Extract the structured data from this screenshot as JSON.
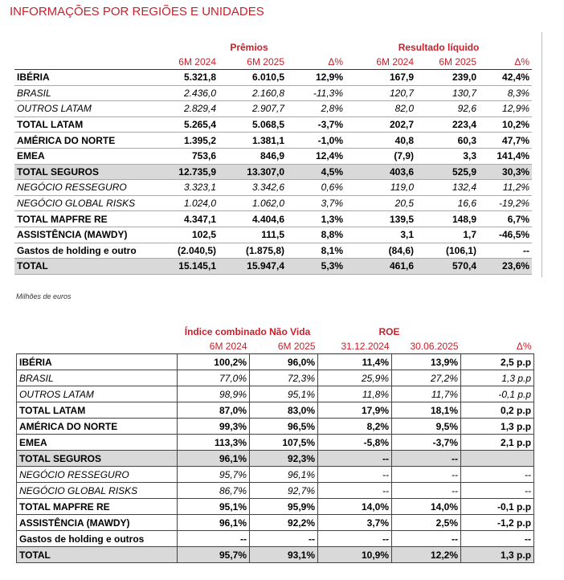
{
  "header": {
    "title": "INFORMAÇÕES POR REGIÕES E UNIDADES"
  },
  "table1": {
    "groups": [
      "Prêmios",
      "Resultado líquido"
    ],
    "columns": [
      "6M 2024",
      "6M 2025",
      "Δ%",
      "6M 2024",
      "6M 2025",
      "Δ%"
    ],
    "rows": [
      {
        "label": "IBÉRIA",
        "style": "bold",
        "cells": [
          "5.321,8",
          "6.010,5",
          "12,9%",
          "167,9",
          "239,0",
          "42,4%"
        ]
      },
      {
        "label": "BRASIL",
        "style": "italic",
        "cells": [
          "2.436,0",
          "2.160,8",
          "-11,3%",
          "120,7",
          "130,7",
          "8,3%"
        ]
      },
      {
        "label": "OUTROS LATAM",
        "style": "italic",
        "cells": [
          "2.829,4",
          "2.907,7",
          "2,8%",
          "82,0",
          "92,6",
          "12,9%"
        ]
      },
      {
        "label": "TOTAL LATAM",
        "style": "bold",
        "cells": [
          "5.265,4",
          "5.068,5",
          "-3,7%",
          "202,7",
          "223,4",
          "10,2%"
        ]
      },
      {
        "label": "AMÉRICA DO NORTE",
        "style": "bold",
        "cells": [
          "1.395,2",
          "1.381,1",
          "-1,0%",
          "40,8",
          "60,3",
          "47,7%"
        ]
      },
      {
        "label": "EMEA",
        "style": "bold",
        "cells": [
          "753,6",
          "846,9",
          "12,4%",
          "(7,9)",
          "3,3",
          "141,4%"
        ]
      },
      {
        "label": "TOTAL SEGUROS",
        "style": "shaded",
        "cells": [
          "12.735,9",
          "13.307,0",
          "4,5%",
          "403,6",
          "525,9",
          "30,3%"
        ]
      },
      {
        "label": "NEGÓCIO RESSEGURO",
        "style": "italic",
        "cells": [
          "3.323,1",
          "3.342,6",
          "0,6%",
          "119,0",
          "132,4",
          "11,2%"
        ]
      },
      {
        "label": "NEGÓCIO GLOBAL RISKS",
        "style": "italic",
        "cells": [
          "1.024,0",
          "1.062,0",
          "3,7%",
          "20,5",
          "16,6",
          "-19,2%"
        ]
      },
      {
        "label": "TOTAL MAPFRE RE",
        "style": "bold",
        "cells": [
          "4.347,1",
          "4.404,6",
          "1,3%",
          "139,5",
          "148,9",
          "6,7%"
        ]
      },
      {
        "label": "ASSISTÊNCIA (MAWDY)",
        "style": "bold",
        "cells": [
          "102,5",
          "111,5",
          "8,8%",
          "3,1",
          "1,7",
          "-46,5%"
        ]
      },
      {
        "label": "Gastos de holding e outro",
        "style": "bold",
        "cells": [
          "(2.040,5)",
          "(1.875,8)",
          "8,1%",
          "(84,6)",
          "(106,1)",
          "--"
        ]
      },
      {
        "label": "TOTAL",
        "style": "shaded",
        "cells": [
          "15.145,1",
          "15.947,4",
          "5,3%",
          "461,6",
          "570,4",
          "23,6%"
        ]
      }
    ]
  },
  "note": "Milhões de euros",
  "table2": {
    "groups": [
      "Índice combinado Não Vida",
      "ROE"
    ],
    "columns": [
      "6M 2024",
      "6M 2025",
      "31.12.2024",
      "30.06.2025",
      "Δ%"
    ],
    "rows": [
      {
        "label": "IBÉRIA",
        "style": "bold",
        "cells": [
          "100,2%",
          "96,0%",
          "11,4%",
          "13,9%",
          "2,5 p.p"
        ]
      },
      {
        "label": "BRASIL",
        "style": "italic",
        "cells": [
          "77,0%",
          "72,3%",
          "25,9%",
          "27,2%",
          "1,3 p.p"
        ]
      },
      {
        "label": "OUTROS LATAM",
        "style": "italic",
        "cells": [
          "98,9%",
          "95,1%",
          "11,8%",
          "11,7%",
          "-0,1 p.p"
        ]
      },
      {
        "label": "TOTAL LATAM",
        "style": "bold",
        "cells": [
          "87,0%",
          "83,0%",
          "17,9%",
          "18,1%",
          "0,2 p.p"
        ]
      },
      {
        "label": "AMÉRICA DO NORTE",
        "style": "bold",
        "cells": [
          "99,3%",
          "96,5%",
          "8,2%",
          "9,5%",
          "1,3 p.p"
        ]
      },
      {
        "label": "EMEA",
        "style": "bold",
        "cells": [
          "113,3%",
          "107,5%",
          "-5,8%",
          "-3,7%",
          "2,1 p.p"
        ]
      },
      {
        "label": "TOTAL SEGUROS",
        "style": "shaded",
        "cells": [
          "96,1%",
          "92,3%",
          "--",
          "--",
          null
        ]
      },
      {
        "label": "NEGÓCIO RESSEGURO",
        "style": "italic",
        "cells": [
          "95,7%",
          "96,1%",
          "--",
          "--",
          "--"
        ]
      },
      {
        "label": "NEGÓCIO GLOBAL RISKS",
        "style": "italic",
        "cells": [
          "86,7%",
          "92,7%",
          "--",
          "--",
          "--"
        ]
      },
      {
        "label": "TOTAL MAPFRE RE",
        "style": "bold",
        "cells": [
          "95,1%",
          "95,9%",
          "14,0%",
          "14,0%",
          "-0,1 p.p"
        ]
      },
      {
        "label": "ASSISTÊNCIA (MAWDY)",
        "style": "bold",
        "cells": [
          "96,1%",
          "92,2%",
          "3,7%",
          "2,5%",
          "-1,2 p.p"
        ]
      },
      {
        "label": "Gastos de holding e outros",
        "style": "bold",
        "cells": [
          "--",
          "--",
          "--",
          "--",
          "--"
        ]
      },
      {
        "label": "TOTAL",
        "style": "shaded",
        "cells": [
          "95,7%",
          "93,1%",
          "10,9%",
          "12,2%",
          "1,3 p.p"
        ]
      }
    ]
  }
}
